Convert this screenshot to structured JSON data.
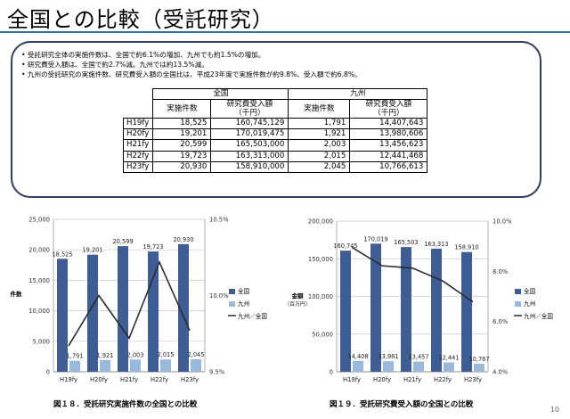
{
  "page": {
    "title": "全国との比較（受託研究）",
    "page_number": "10"
  },
  "summary": {
    "bullets": [
      "受託研究全体の実施件数は、全国で約6.1%の増加、九州でも約1.5%の増加。",
      "研究費受入額は、全国で約2.7%減。九州では約13.5%減。",
      "九州の受託研究の実施件数、研究費受入額の全国比は、平成23年度で実施件数が約9.8%、受入額で約6.8%。"
    ]
  },
  "table": {
    "groups": [
      "全国",
      "九州"
    ],
    "col_count": "実施件数",
    "col_amount": "研究費受入額",
    "col_amount_unit": "（千円）",
    "rows": [
      {
        "fy": "H19fy",
        "nat_count": "18,525",
        "nat_amount": "160,745,129",
        "kyu_count": "1,791",
        "kyu_amount": "14,407,643"
      },
      {
        "fy": "H20fy",
        "nat_count": "19,201",
        "nat_amount": "170,019,475",
        "kyu_count": "1,921",
        "kyu_amount": "13,980,606"
      },
      {
        "fy": "H21fy",
        "nat_count": "20,599",
        "nat_amount": "165,503,000",
        "kyu_count": "2,003",
        "kyu_amount": "13,456,623"
      },
      {
        "fy": "H22fy",
        "nat_count": "19,723",
        "nat_amount": "163,313,000",
        "kyu_count": "2,015",
        "kyu_amount": "12,441,468"
      },
      {
        "fy": "H23fy",
        "nat_count": "20,930",
        "nat_amount": "158,910,000",
        "kyu_count": "2,045",
        "kyu_amount": "10,766,613"
      }
    ]
  },
  "colors": {
    "national": "#3d5d94",
    "kyushu": "#98b8dc",
    "ratio_line": "#2b2b2b",
    "border": "#2c3f63"
  },
  "chart_data": [
    {
      "type": "bar",
      "title": "図１８．受託研究実施件数の全国との比較",
      "categories": [
        "H19fy",
        "H20fy",
        "H21fy",
        "H22fy",
        "H23fy"
      ],
      "ylabel": "件数",
      "ylim": [
        0,
        25000
      ],
      "yticks": [
        "0",
        "5,000",
        "10,000",
        "15,000",
        "20,000",
        "25,000"
      ],
      "y2lim": [
        9.5,
        10.5
      ],
      "y2ticks": [
        "9.5%",
        "10.0%",
        "10.5%"
      ],
      "series": [
        {
          "name": "全国",
          "values": [
            18525,
            19201,
            20599,
            19723,
            20930
          ],
          "labels": [
            "18,525",
            "19,201",
            "20,599",
            "19,723",
            "20,930"
          ]
        },
        {
          "name": "九州",
          "values": [
            1791,
            1921,
            2003,
            2015,
            2045
          ],
          "labels": [
            "1,791",
            "1,921",
            "2,003",
            "2,015",
            "2,045"
          ]
        },
        {
          "name": "九州／全国",
          "axis": "right",
          "type": "line",
          "values": [
            9.67,
            10.0,
            9.72,
            10.22,
            9.77
          ]
        }
      ],
      "legend": "right",
      "grid": true
    },
    {
      "type": "bar",
      "title": "図１９．受託研究費受入額の全国との比較",
      "categories": [
        "H19fy",
        "H20fy",
        "H21fy",
        "H22fy",
        "H23fy"
      ],
      "ylabel": "金額",
      "ylabel2": "（百万円）",
      "ylim": [
        0,
        200000
      ],
      "yticks": [
        "0",
        "50,000",
        "100,000",
        "150,000",
        "200,000"
      ],
      "y2lim": [
        4.0,
        10.0
      ],
      "y2ticks": [
        "4.0%",
        "6.0%",
        "8.0%",
        "10.0%"
      ],
      "series": [
        {
          "name": "全国",
          "values": [
            160745,
            170019,
            165503,
            163313,
            158910
          ],
          "labels": [
            "160,745",
            "170,019",
            "165,503",
            "163,313",
            "158,910"
          ]
        },
        {
          "name": "九州",
          "values": [
            14408,
            13981,
            13457,
            12441,
            10767
          ],
          "labels": [
            "14,408",
            "13,981",
            "13,457",
            "12,441",
            "10,767"
          ]
        },
        {
          "name": "九州／全国",
          "axis": "right",
          "type": "line",
          "values": [
            8.96,
            8.22,
            8.13,
            7.62,
            6.78
          ]
        }
      ],
      "legend": "right",
      "grid": true
    }
  ]
}
